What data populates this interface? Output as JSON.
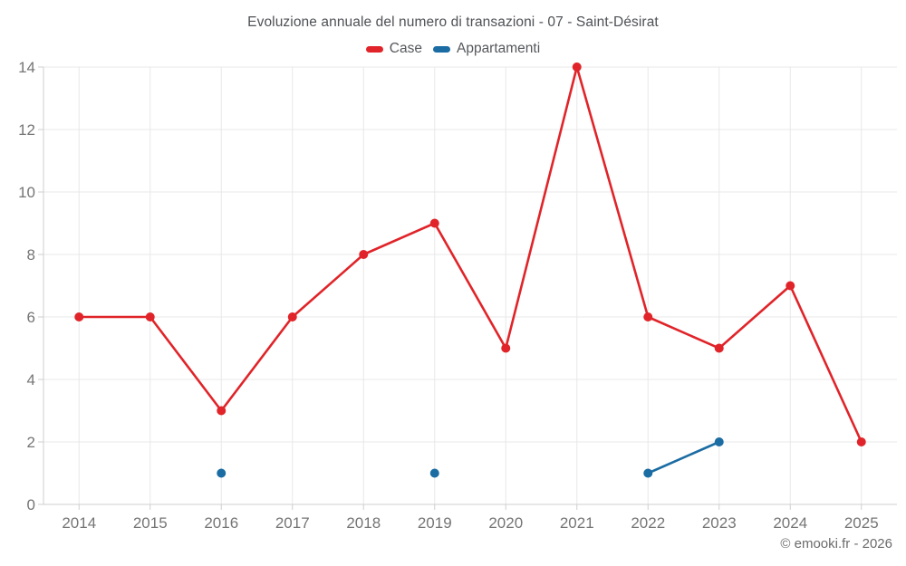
{
  "chart_data": {
    "type": "line",
    "title": "Evoluzione annuale del numero di transazioni - 07 - Saint-Désirat",
    "x": [
      "2014",
      "2015",
      "2016",
      "2017",
      "2018",
      "2019",
      "2020",
      "2021",
      "2022",
      "2023",
      "2024",
      "2025"
    ],
    "series": [
      {
        "name": "Case",
        "color": "#e02429",
        "values": [
          6,
          6,
          3,
          6,
          8,
          9,
          5,
          14,
          6,
          5,
          7,
          2
        ]
      },
      {
        "name": "Appartamenti",
        "color": "#1a6ca3",
        "values": [
          null,
          null,
          1,
          null,
          null,
          1,
          null,
          null,
          1,
          2,
          null,
          null
        ]
      }
    ],
    "xlabel": "",
    "ylabel": "",
    "ylim": [
      0,
      14
    ],
    "yticks": [
      0,
      2,
      4,
      6,
      8,
      10,
      12,
      14
    ],
    "grid": true,
    "legend_position": "top"
  },
  "footer": {
    "copyright": "© emooki.fr - 2026"
  },
  "colors": {
    "grid": "#e8e8e8",
    "axis": "#cfcfcf",
    "tick_label": "#757575",
    "background": "#ffffff"
  }
}
